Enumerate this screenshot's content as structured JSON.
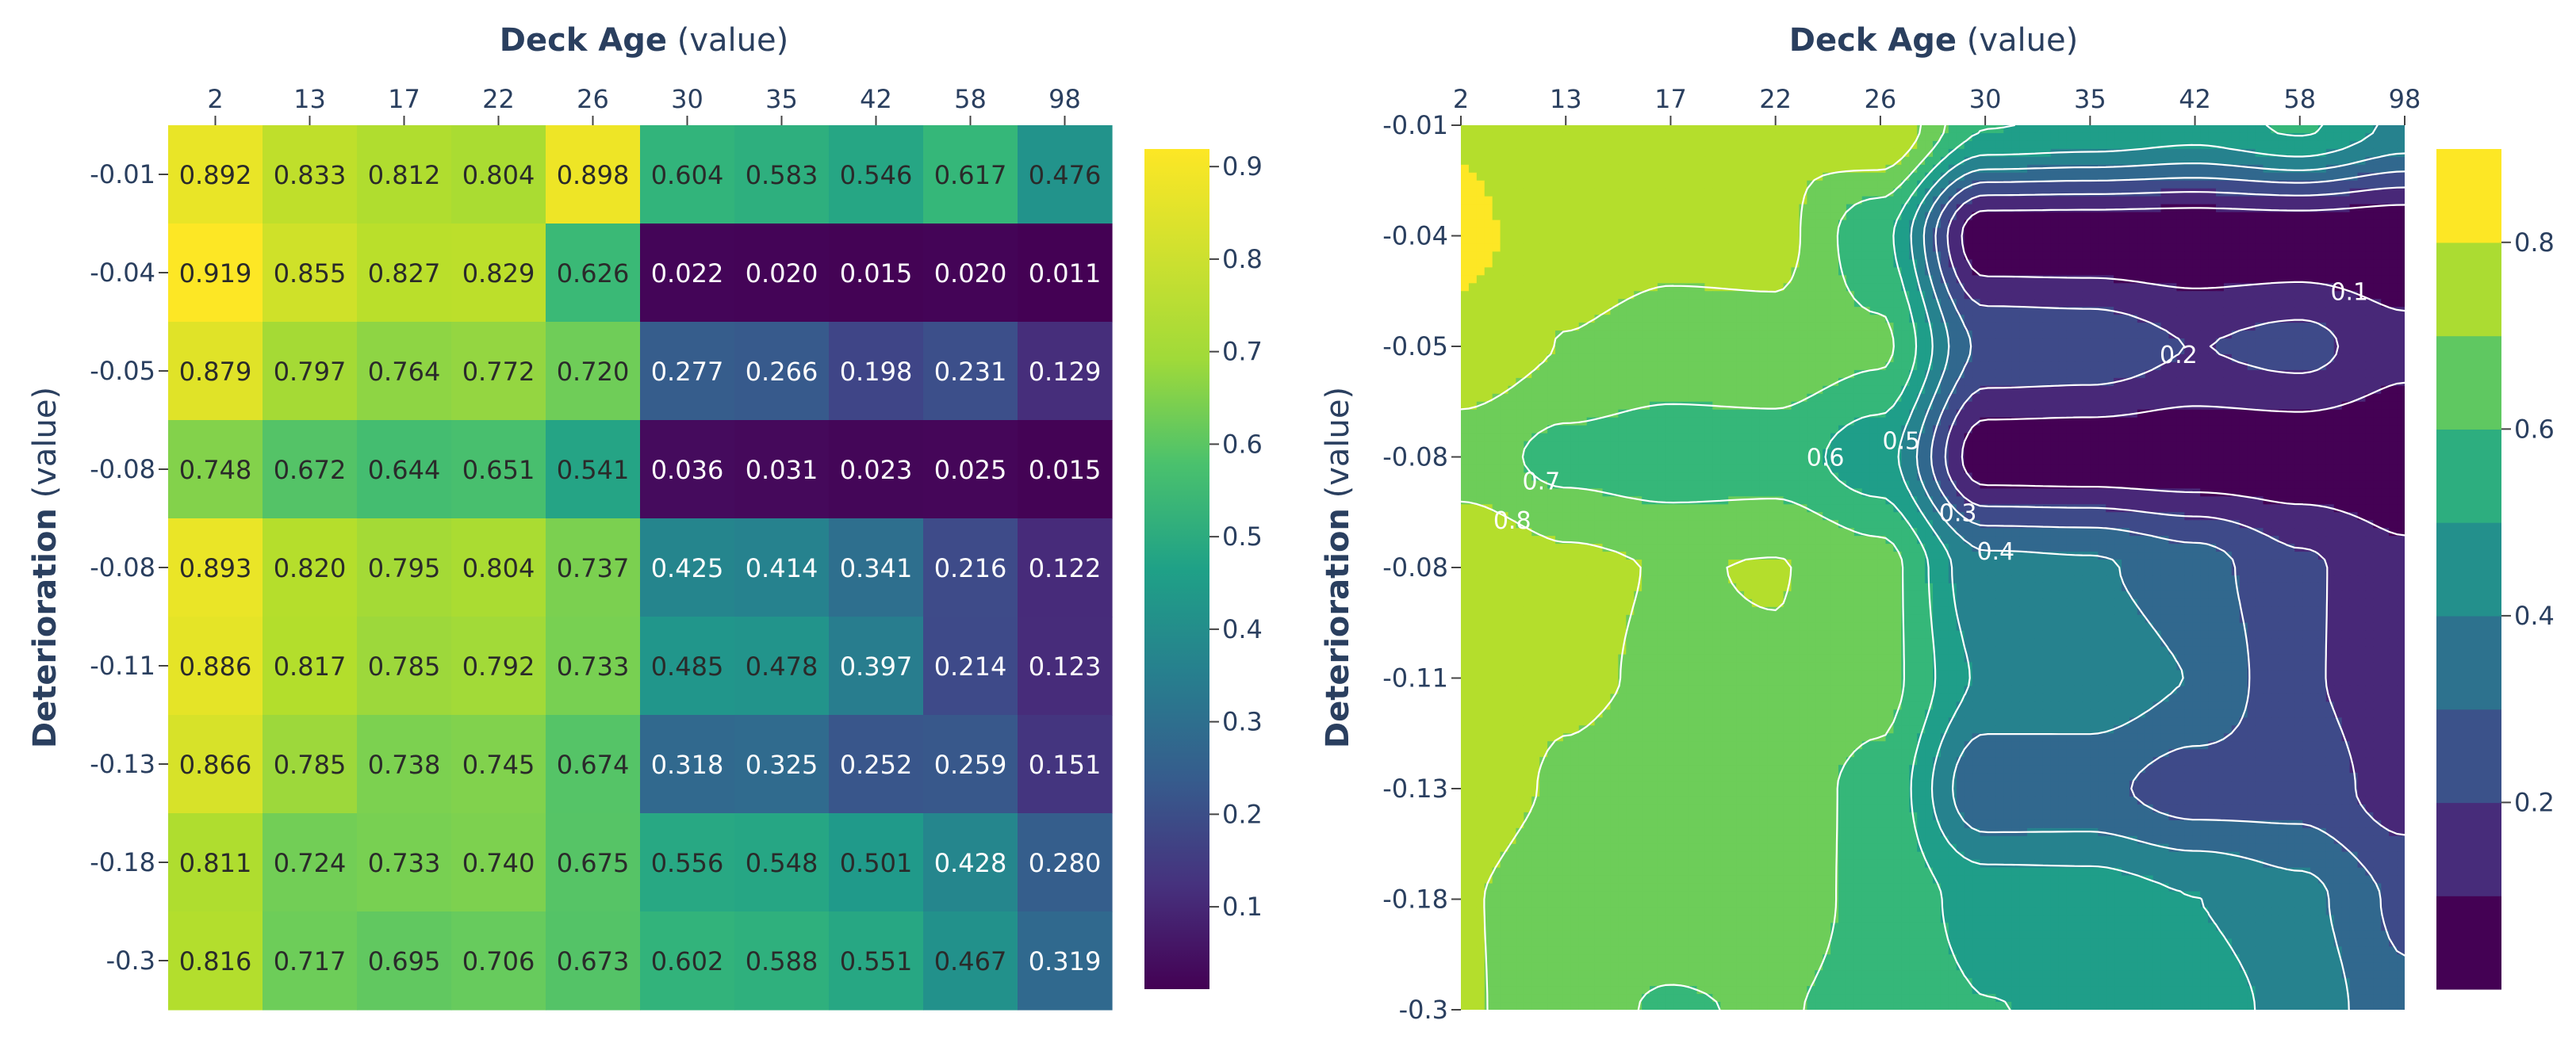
{
  "chart_data": [
    {
      "type": "heatmap",
      "title_bold": "Deck Age",
      "title_suffix": " (value)",
      "ylabel_bold": "Deterioration",
      "ylabel_suffix": " (value)",
      "x_ticks": [
        "2",
        "13",
        "17",
        "22",
        "26",
        "30",
        "35",
        "42",
        "58",
        "98"
      ],
      "y_ticks": [
        "-0.01",
        "-0.04",
        "-0.05",
        "-0.08",
        "-0.08",
        "-0.11",
        "-0.13",
        "-0.18",
        "-0.3"
      ],
      "values": [
        [
          0.892,
          0.833,
          0.812,
          0.804,
          0.898,
          0.604,
          0.583,
          0.546,
          0.617,
          0.476
        ],
        [
          0.919,
          0.855,
          0.827,
          0.829,
          0.626,
          0.022,
          0.02,
          0.015,
          0.02,
          0.011
        ],
        [
          0.879,
          0.797,
          0.764,
          0.772,
          0.72,
          0.277,
          0.266,
          0.198,
          0.231,
          0.129
        ],
        [
          0.748,
          0.672,
          0.644,
          0.651,
          0.541,
          0.036,
          0.031,
          0.023,
          0.025,
          0.015
        ],
        [
          0.893,
          0.82,
          0.795,
          0.804,
          0.737,
          0.425,
          0.414,
          0.341,
          0.216,
          0.122
        ],
        [
          0.886,
          0.817,
          0.785,
          0.792,
          0.733,
          0.485,
          0.478,
          0.397,
          0.214,
          0.123
        ],
        [
          0.866,
          0.785,
          0.738,
          0.745,
          0.674,
          0.318,
          0.325,
          0.252,
          0.259,
          0.151
        ],
        [
          0.811,
          0.724,
          0.733,
          0.74,
          0.675,
          0.556,
          0.548,
          0.501,
          0.428,
          0.28
        ],
        [
          0.816,
          0.717,
          0.695,
          0.706,
          0.673,
          0.602,
          0.588,
          0.551,
          0.467,
          0.319
        ]
      ],
      "colorscale": "viridis",
      "zmin": 0.011,
      "zmax": 0.919,
      "colorbar_ticks": [
        "0.1",
        "0.2",
        "0.3",
        "0.4",
        "0.5",
        "0.6",
        "0.7",
        "0.8",
        "0.9"
      ]
    },
    {
      "type": "contour",
      "title_bold": "Deck Age",
      "title_suffix": " (value)",
      "ylabel_bold": "Deterioration",
      "ylabel_suffix": " (value)",
      "x_ticks": [
        "2",
        "13",
        "17",
        "22",
        "26",
        "30",
        "35",
        "42",
        "58",
        "98"
      ],
      "y_ticks": [
        "-0.01",
        "-0.04",
        "-0.05",
        "-0.08",
        "-0.08",
        "-0.11",
        "-0.13",
        "-0.18",
        "-0.3"
      ],
      "contour_start": 0.1,
      "contour_step": 0.1,
      "contour_end": 0.9,
      "contour_labels": [
        "0.1",
        "0.2",
        "0.3",
        "0.4",
        "0.5",
        "0.6",
        "0.7",
        "0.8"
      ],
      "colorbar_ticks": [
        "0.2",
        "0.4",
        "0.6",
        "0.8"
      ],
      "colorscale": "viridis"
    }
  ]
}
